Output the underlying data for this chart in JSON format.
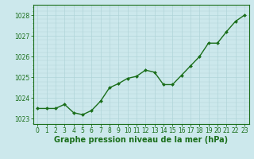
{
  "x": [
    0,
    1,
    2,
    3,
    4,
    5,
    6,
    7,
    8,
    9,
    10,
    11,
    12,
    13,
    14,
    15,
    16,
    17,
    18,
    19,
    20,
    21,
    22,
    23
  ],
  "y": [
    1023.5,
    1023.5,
    1023.5,
    1023.7,
    1023.3,
    1023.2,
    1023.4,
    1023.85,
    1024.5,
    1024.7,
    1024.95,
    1025.05,
    1025.35,
    1025.25,
    1024.65,
    1024.65,
    1025.1,
    1025.55,
    1026.0,
    1026.65,
    1026.65,
    1027.2,
    1027.7,
    1028.0
  ],
  "line_color": "#1a6e1a",
  "marker": "D",
  "marker_size": 2.0,
  "bg_color": "#cce8ec",
  "grid_color": "#b0d4d8",
  "axis_color": "#1a6e1a",
  "xlabel": "Graphe pression niveau de la mer (hPa)",
  "xlabel_fontsize": 7,
  "xlabel_color": "#1a6e1a",
  "xlim": [
    -0.5,
    23.5
  ],
  "ylim": [
    1022.75,
    1028.5
  ],
  "yticks": [
    1023,
    1024,
    1025,
    1026,
    1027,
    1028
  ],
  "xticks": [
    0,
    1,
    2,
    3,
    4,
    5,
    6,
    7,
    8,
    9,
    10,
    11,
    12,
    13,
    14,
    15,
    16,
    17,
    18,
    19,
    20,
    21,
    22,
    23
  ],
  "tick_fontsize": 5.5,
  "line_width": 1.0
}
